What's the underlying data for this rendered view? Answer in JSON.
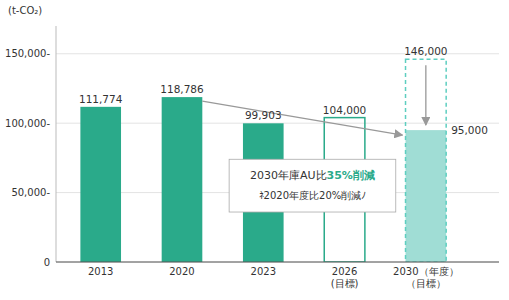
{
  "chart_data": {
    "type": "bar",
    "categories": [
      "2013",
      "2020",
      "2023",
      "2026\n(目標)",
      "2030（年度）\n（目標）"
    ],
    "series": [
      {
        "values": [
          111774,
          118786,
          99903,
          null,
          null
        ],
        "color": "#2aaa8a",
        "value_labels": [
          "111,774",
          "118,786",
          "99,903",
          null,
          null
        ]
      },
      {
        "values": [
          null,
          null,
          null,
          104000,
          null
        ],
        "color": "#2aaa8a",
        "line_style": "solid",
        "value_labels": [
          null,
          null,
          null,
          "104,000",
          null
        ]
      },
      {
        "values": [
          null,
          null,
          null,
          null,
          95000
        ],
        "color": "#a0ddd5",
        "value_labels": [
          null,
          null,
          null,
          null,
          "95,000"
        ]
      },
      {
        "values": [
          null,
          null,
          null,
          null,
          146000
        ],
        "color": "#5ecec0",
        "line_style": "dashed",
        "value_labels": [
          null,
          null,
          null,
          null,
          "146,000"
        ]
      }
    ],
    "ylabel": "(t-CO₂)",
    "ylim": [
      0,
      170000
    ],
    "yticks": [
      0,
      {
        "value": 50000,
        "label": "50,000-"
      },
      {
        "value": 100000,
        "label": "100,000-"
      },
      {
        "value": 150000,
        "label": "150,000-"
      }
    ],
    "grid": true,
    "annotations": [
      [
        {
          "text": "2030年庫AU比"
        },
        {
          "text": "35%削減",
          "color": "#2aaa8a"
        }
      ],
      [
        {
          "text": "ﾈ2020年度比20%削減ﾉ"
        }
      ]
    ]
  }
}
